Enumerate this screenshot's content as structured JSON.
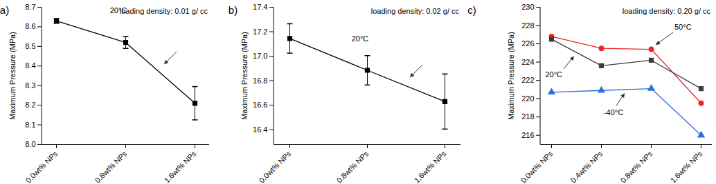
{
  "chart_data": [
    {
      "type": "line",
      "title": "(a)",
      "annotations": [
        "loading density: 0.01 g/ cc"
      ],
      "y_label": "Maximum Pressure (MPa)",
      "categories": [
        "0.0wt% NPs",
        "0.8wt% NPs",
        "1.6wt% NPs"
      ],
      "series": [
        {
          "name": "20°C",
          "color": "#000000",
          "marker": "square",
          "values": [
            8.63,
            8.52,
            8.21
          ],
          "errors": [
            0.012,
            0.03,
            0.085
          ]
        }
      ],
      "ylim": [
        8.0,
        8.7
      ],
      "yticks": [
        {
          "value": 8,
          "label": "8.0"
        },
        8.1,
        8.2,
        8.3,
        8.4,
        8.5,
        8.6,
        8.7
      ]
    },
    {
      "type": "line",
      "title": "(b)",
      "annotations": [
        "loading density: 0.02 g/ cc"
      ],
      "y_label": "Maximum Pressure (MPa)",
      "categories": [
        "0.0wt% NPs",
        "0.8wt% NPs",
        "1.6wt% NPs"
      ],
      "series": [
        {
          "name": "20°C",
          "color": "#000000",
          "marker": "square",
          "values": [
            17.145,
            16.885,
            16.63
          ],
          "errors": [
            0.12,
            0.12,
            0.225
          ]
        }
      ],
      "ylim": [
        16.28,
        17.4
      ],
      "yticks": [
        16.4,
        16.6,
        16.8,
        {
          "value": 17,
          "label": "17.0"
        },
        17.2,
        17.4
      ]
    },
    {
      "type": "line",
      "title": "(c)",
      "annotations": [
        "loading density: 0.20 g/ cc"
      ],
      "y_label": "Maximum Pressure (MPa)",
      "categories": [
        "0.0wt% NPs",
        "0.4wt% NPs",
        "0.8wt% NPs",
        "1.6wt% NPs"
      ],
      "series": [
        {
          "name": "50°C",
          "color": "#f02424",
          "marker": "circle",
          "values": [
            226.8,
            225.5,
            225.4,
            219.5
          ]
        },
        {
          "name": "20°C",
          "color": "#3c3c3c",
          "marker": "square",
          "values": [
            226.5,
            223.6,
            224.2,
            221.1
          ]
        },
        {
          "name": "-40°C",
          "color": "#2b6fdc",
          "marker": "triangle",
          "values": [
            220.7,
            220.9,
            221.1,
            216.0
          ]
        }
      ],
      "ylim": [
        215,
        230
      ],
      "yticks": [
        216,
        218,
        220,
        222,
        224,
        226,
        228,
        230
      ]
    }
  ]
}
